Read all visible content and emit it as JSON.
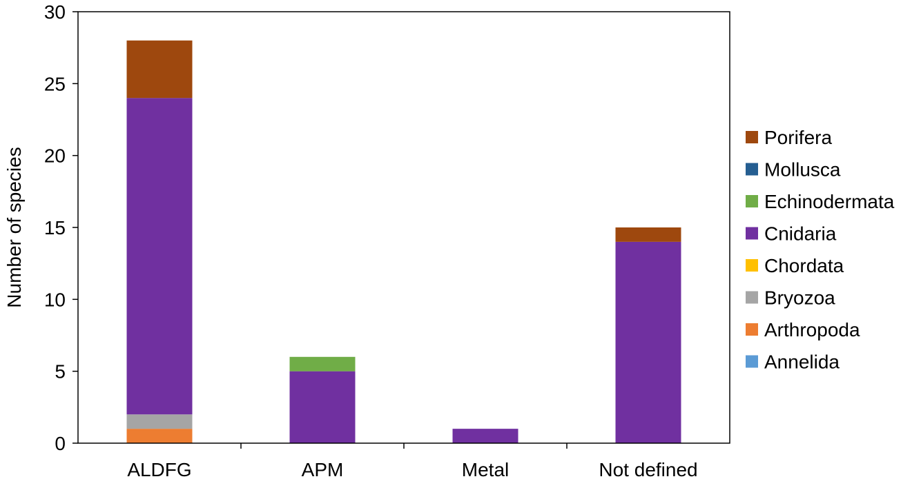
{
  "chart_data": {
    "type": "bar",
    "stacked": true,
    "title": "",
    "xlabel": "",
    "ylabel": "Number of species",
    "ylim": [
      0,
      30
    ],
    "yticks": [
      0,
      5,
      10,
      15,
      20,
      25,
      30
    ],
    "categories": [
      "ALDFG",
      "APM",
      "Metal",
      "Not defined"
    ],
    "grid": false,
    "legend_position": "right",
    "series": [
      {
        "name": "Annelida",
        "color": "#5b9bd5",
        "values": [
          0,
          0,
          0,
          0
        ]
      },
      {
        "name": "Arthropoda",
        "color": "#ed7d31",
        "values": [
          1,
          0,
          0,
          0
        ]
      },
      {
        "name": "Bryozoa",
        "color": "#a5a5a5",
        "values": [
          1,
          0,
          0,
          0
        ]
      },
      {
        "name": "Chordata",
        "color": "#ffc000",
        "values": [
          0,
          0,
          0,
          0
        ]
      },
      {
        "name": "Cnidaria",
        "color": "#7030a0",
        "values": [
          22,
          5,
          1,
          14
        ]
      },
      {
        "name": "Echinodermata",
        "color": "#70ad47",
        "values": [
          0,
          1,
          0,
          0
        ]
      },
      {
        "name": "Mollusca",
        "color": "#255e91",
        "values": [
          0,
          0,
          0,
          0
        ]
      },
      {
        "name": "Porifera",
        "color": "#9e480e",
        "values": [
          4,
          0,
          0,
          1
        ]
      }
    ]
  }
}
